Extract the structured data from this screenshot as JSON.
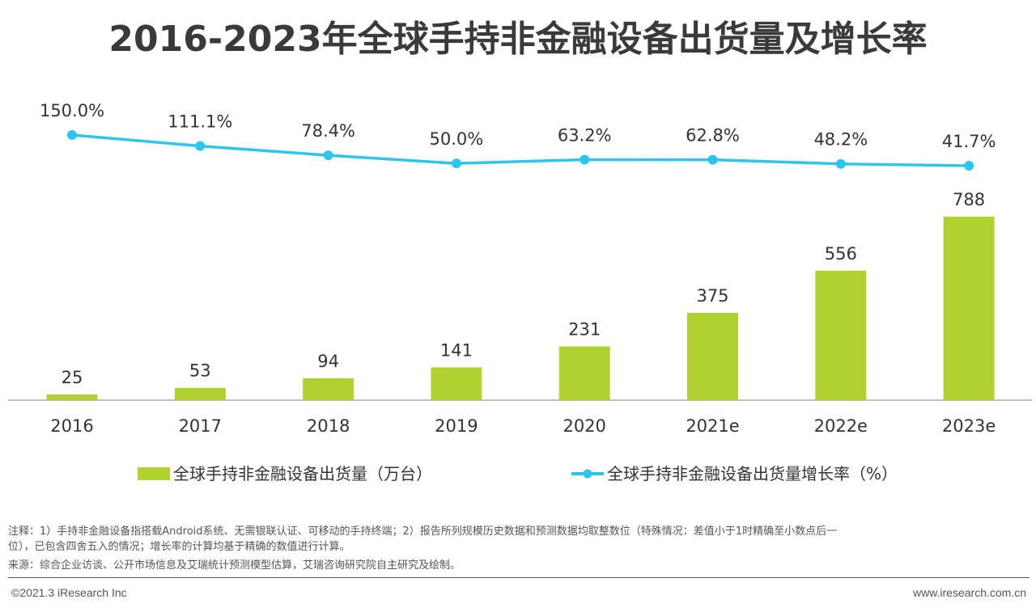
{
  "title": "2016-2023年全球手持非金融设备出货量及增长率",
  "chart_data": {
    "type": "bar",
    "categories": [
      "2016",
      "2017",
      "2018",
      "2019",
      "2020",
      "2021e",
      "2022e",
      "2023e"
    ],
    "series": [
      {
        "name": "全球手持非金融设备出货量（万台）",
        "type": "bar",
        "values": [
          25,
          53,
          94,
          141,
          231,
          375,
          556,
          788
        ],
        "labels": [
          "25",
          "53",
          "94",
          "141",
          "231",
          "375",
          "556",
          "788"
        ],
        "color": "#b0d130"
      },
      {
        "name": "全球手持非金融设备出货量增长率（%）",
        "type": "line",
        "values": [
          150.0,
          111.1,
          78.4,
          50.0,
          63.2,
          62.8,
          48.2,
          41.7
        ],
        "labels": [
          "150.0%",
          "111.1%",
          "78.4%",
          "50.0%",
          "63.2%",
          "62.8%",
          "48.2%",
          "41.7%"
        ],
        "color": "#2ec4ec"
      }
    ],
    "legend_position": "bottom",
    "grid": false
  },
  "notes": {
    "line1": "注释：1）手持非金融设备指搭载Android系统、无需银联认证、可移动的手持终端；2）报告所列规模历史数据和预测数据均取整数位（特殊情况：差值小于1时精确至小数点后一",
    "line2": "位），已包含四舍五入的情况；增长率的计算均基于精确的数值进行计算。",
    "line3": "来源：综合企业访谈、公开市场信息及艾瑞统计预测模型估算，艾瑞咨询研究院自主研究及绘制。"
  },
  "footer": {
    "copyright": "©2021.3 iResearch Inc",
    "website": "www.iresearch.com.cn"
  }
}
